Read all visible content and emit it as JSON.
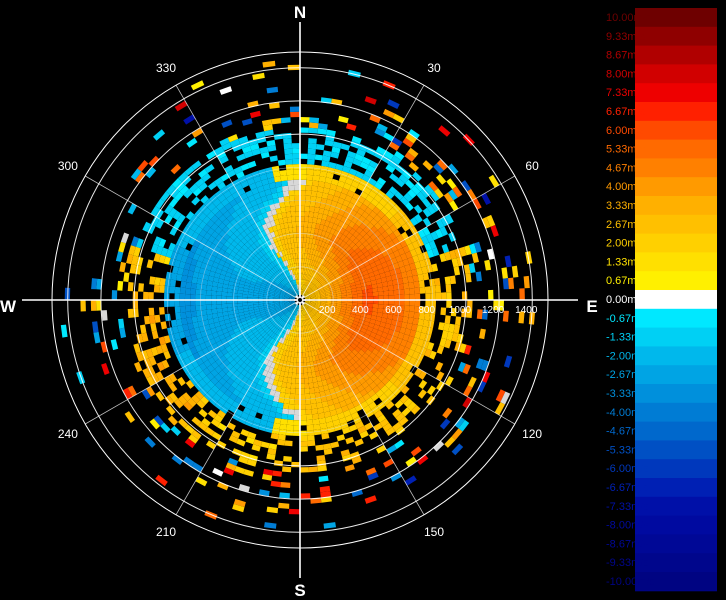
{
  "compass": {
    "north": "N",
    "east": "E",
    "south": "S",
    "west": "W"
  },
  "bearings": [
    {
      "deg": 30,
      "label": "30"
    },
    {
      "deg": 60,
      "label": "60"
    },
    {
      "deg": 120,
      "label": "120"
    },
    {
      "deg": 150,
      "label": "150"
    },
    {
      "deg": 210,
      "label": "210"
    },
    {
      "deg": 240,
      "label": "240"
    },
    {
      "deg": 300,
      "label": "300"
    },
    {
      "deg": 330,
      "label": "330"
    }
  ],
  "chart_data": {
    "type": "heatmap",
    "title": "",
    "projection": "polar",
    "range_labels": [
      "200",
      "400",
      "600",
      "800",
      "1000",
      "1200",
      "1400"
    ],
    "range_max": 1450,
    "colorbar": {
      "unit": "m/s",
      "labels": [
        "10.00m/s",
        "9.33m/s",
        "8.67m/s",
        "8.00m/s",
        "7.33m/s",
        "6.67m/s",
        "6.00m/s",
        "5.33m/s",
        "4.67m/s",
        "4.00m/s",
        "3.33m/s",
        "2.67m/s",
        "2.00m/s",
        "1.33m/s",
        "0.67m/s",
        "0.00m/s",
        "-0.67m/s",
        "-1.33m/s",
        "-2.00m/s",
        "-2.67m/s",
        "-3.33m/s",
        "-4.00m/s",
        "-4.67m/s",
        "-5.33m/s",
        "-6.00m/s",
        "-6.67m/s",
        "-7.33m/s",
        "-8.00m/s",
        "-8.67m/s",
        "-9.33m/s",
        "-10.00m/s"
      ],
      "values": [
        10.0,
        9.33,
        8.67,
        8.0,
        7.33,
        6.67,
        6.0,
        5.33,
        4.67,
        4.0,
        3.33,
        2.67,
        2.0,
        1.33,
        0.67,
        0.0,
        -0.67,
        -1.33,
        -2.0,
        -2.67,
        -3.33,
        -4.0,
        -4.67,
        -5.33,
        -6.0,
        -6.67,
        -7.33,
        -8.0,
        -8.67,
        -9.33,
        -10.0
      ],
      "colors": [
        "#6e0000",
        "#8f0000",
        "#b00000",
        "#d10000",
        "#ee0000",
        "#ff2000",
        "#ff4a00",
        "#ff6a00",
        "#ff8000",
        "#ff9a00",
        "#ffb000",
        "#ffc000",
        "#ffd000",
        "#ffe000",
        "#fff000",
        "#ffffff",
        "#00e8ff",
        "#00d0f4",
        "#00b8ec",
        "#00a4e4",
        "#0090dc",
        "#007cd4",
        "#0068cc",
        "#0050c4",
        "#0038bc",
        "#0020b4",
        "#0010a8",
        "#000aa0",
        "#000896",
        "#00068c",
        "#000482"
      ]
    },
    "velocity_field": {
      "inner_radius_m": 800,
      "outer_radius_m": 1450,
      "near_pattern": "positive (toward yellow/orange) on eastern half, negative (blue) on western half, zero line curving through north and south",
      "max_positive": 5.33,
      "min_negative": -3.33
    }
  }
}
